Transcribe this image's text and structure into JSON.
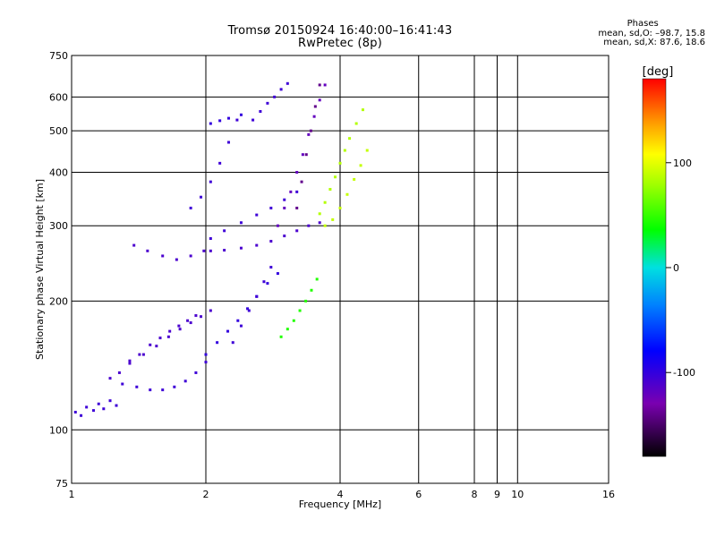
{
  "chart_data": {
    "type": "scatter",
    "title": "Tromsø 20150924 16:40:00–16:41:43",
    "subtitle": "RwPretec (8p)",
    "xlabel": "Frequency [MHz]",
    "ylabel": "Stationary phase Virtual Height [km]",
    "x_scale": "log",
    "y_scale": "log",
    "xlim": [
      1,
      16
    ],
    "ylim": [
      75,
      750
    ],
    "x_ticks": [
      1,
      2,
      4,
      6,
      8,
      9,
      10,
      16
    ],
    "x_tick_labels": [
      "1",
      "2",
      "4",
      "6",
      "8",
      "9",
      "10",
      "16"
    ],
    "y_ticks": [
      75,
      100,
      200,
      300,
      400,
      500,
      600,
      750
    ],
    "y_tick_labels": [
      "75",
      "100",
      "200",
      "300",
      "400",
      "500",
      "600",
      "750"
    ],
    "grid": true,
    "phase_stats": {
      "heading": "Phases",
      "line_o": "mean, sd,O: –98.7, 15.8",
      "line_x": "mean, sd,X: 87.6, 18.6"
    },
    "colorbar": {
      "unit_label": "[deg]",
      "range": [
        -180,
        180
      ],
      "ticks": [
        100,
        0,
        -100
      ],
      "tick_labels": [
        "100",
        "0",
        "-100"
      ]
    },
    "traces": [
      {
        "name": "",
        "phase": -105,
        "x": [
          1.02,
          1.05,
          1.08,
          1.12,
          1.15,
          1.18,
          1.22,
          1.26
        ],
        "y": [
          110,
          108,
          113,
          111,
          115,
          112,
          117,
          114
        ]
      },
      {
        "name": "",
        "phase": -110,
        "x": [
          1.22,
          1.28,
          1.35,
          1.42,
          1.5,
          1.58,
          1.66,
          1.74,
          1.82,
          1.9
        ],
        "y": [
          132,
          136,
          143,
          150,
          158,
          164,
          170,
          175,
          180,
          185
        ]
      },
      {
        "name": "",
        "phase": -105,
        "x": [
          1.3,
          1.4,
          1.5,
          1.6,
          1.7,
          1.8,
          1.9,
          2.0
        ],
        "y": [
          128,
          126,
          124,
          124,
          126,
          130,
          136,
          144
        ]
      },
      {
        "name": "",
        "phase": -110,
        "x": [
          1.35,
          1.45,
          1.55,
          1.65,
          1.75,
          1.85,
          1.95,
          2.05
        ],
        "y": [
          145,
          150,
          157,
          165,
          172,
          178,
          184,
          190
        ]
      },
      {
        "name": "",
        "phase": -100,
        "x": [
          2.0,
          2.12,
          2.24,
          2.36,
          2.48,
          2.6,
          2.75,
          2.9
        ],
        "y": [
          150,
          160,
          170,
          180,
          192,
          205,
          220,
          232
        ]
      },
      {
        "name": "",
        "phase": -105,
        "x": [
          2.3,
          2.4,
          2.5,
          2.6,
          2.7,
          2.8
        ],
        "y": [
          160,
          175,
          190,
          205,
          222,
          240
        ]
      },
      {
        "name": "",
        "phase": -110,
        "x": [
          1.38,
          1.48,
          1.6,
          1.72,
          1.85,
          1.98
        ],
        "y": [
          270,
          262,
          255,
          250,
          255,
          262
        ]
      },
      {
        "name": "",
        "phase": -110,
        "x": [
          2.05,
          2.2,
          2.4,
          2.6,
          2.8,
          3.0,
          3.2,
          3.4,
          3.6
        ],
        "y": [
          262,
          263,
          266,
          270,
          276,
          284,
          292,
          300,
          305
        ]
      },
      {
        "name": "",
        "phase": -105,
        "x": [
          2.05,
          2.2,
          2.4,
          2.6,
          2.8,
          3.0,
          3.2
        ],
        "y": [
          280,
          292,
          305,
          318,
          330,
          345,
          360
        ]
      },
      {
        "name": "",
        "phase": -105,
        "x": [
          1.85,
          1.95,
          2.05,
          2.15,
          2.25,
          2.35
        ],
        "y": [
          330,
          350,
          380,
          420,
          470,
          530
        ]
      },
      {
        "name": "",
        "phase": -100,
        "x": [
          2.05,
          2.15,
          2.25,
          2.4
        ],
        "y": [
          520,
          528,
          535,
          545
        ]
      },
      {
        "name": "",
        "phase": -105,
        "x": [
          2.55,
          2.65,
          2.75,
          2.85,
          2.95,
          3.05
        ],
        "y": [
          530,
          555,
          580,
          600,
          625,
          645
        ]
      },
      {
        "name": "",
        "phase": -120,
        "x": [
          2.9,
          3.0,
          3.1,
          3.2,
          3.3,
          3.4,
          3.5,
          3.6,
          3.7
        ],
        "y": [
          300,
          330,
          360,
          400,
          440,
          490,
          540,
          590,
          640
        ]
      },
      {
        "name": "",
        "phase": -140,
        "x": [
          3.2,
          3.28,
          3.36,
          3.44,
          3.52,
          3.6
        ],
        "y": [
          330,
          380,
          440,
          500,
          570,
          640
        ]
      },
      {
        "name": "",
        "phase": 85,
        "x": [
          3.6,
          3.7,
          3.8,
          3.9,
          4.0,
          4.1,
          4.2,
          4.35,
          4.5
        ],
        "y": [
          320,
          340,
          365,
          390,
          420,
          450,
          480,
          520,
          560
        ]
      },
      {
        "name": "",
        "phase": 90,
        "x": [
          3.7,
          3.85,
          4.0,
          4.15,
          4.3,
          4.45,
          4.6
        ],
        "y": [
          300,
          310,
          330,
          355,
          385,
          415,
          450
        ]
      },
      {
        "name": "",
        "phase": 45,
        "x": [
          2.95,
          3.05,
          3.15,
          3.25,
          3.35,
          3.45,
          3.55
        ],
        "y": [
          165,
          172,
          180,
          190,
          200,
          212,
          225
        ]
      }
    ]
  }
}
